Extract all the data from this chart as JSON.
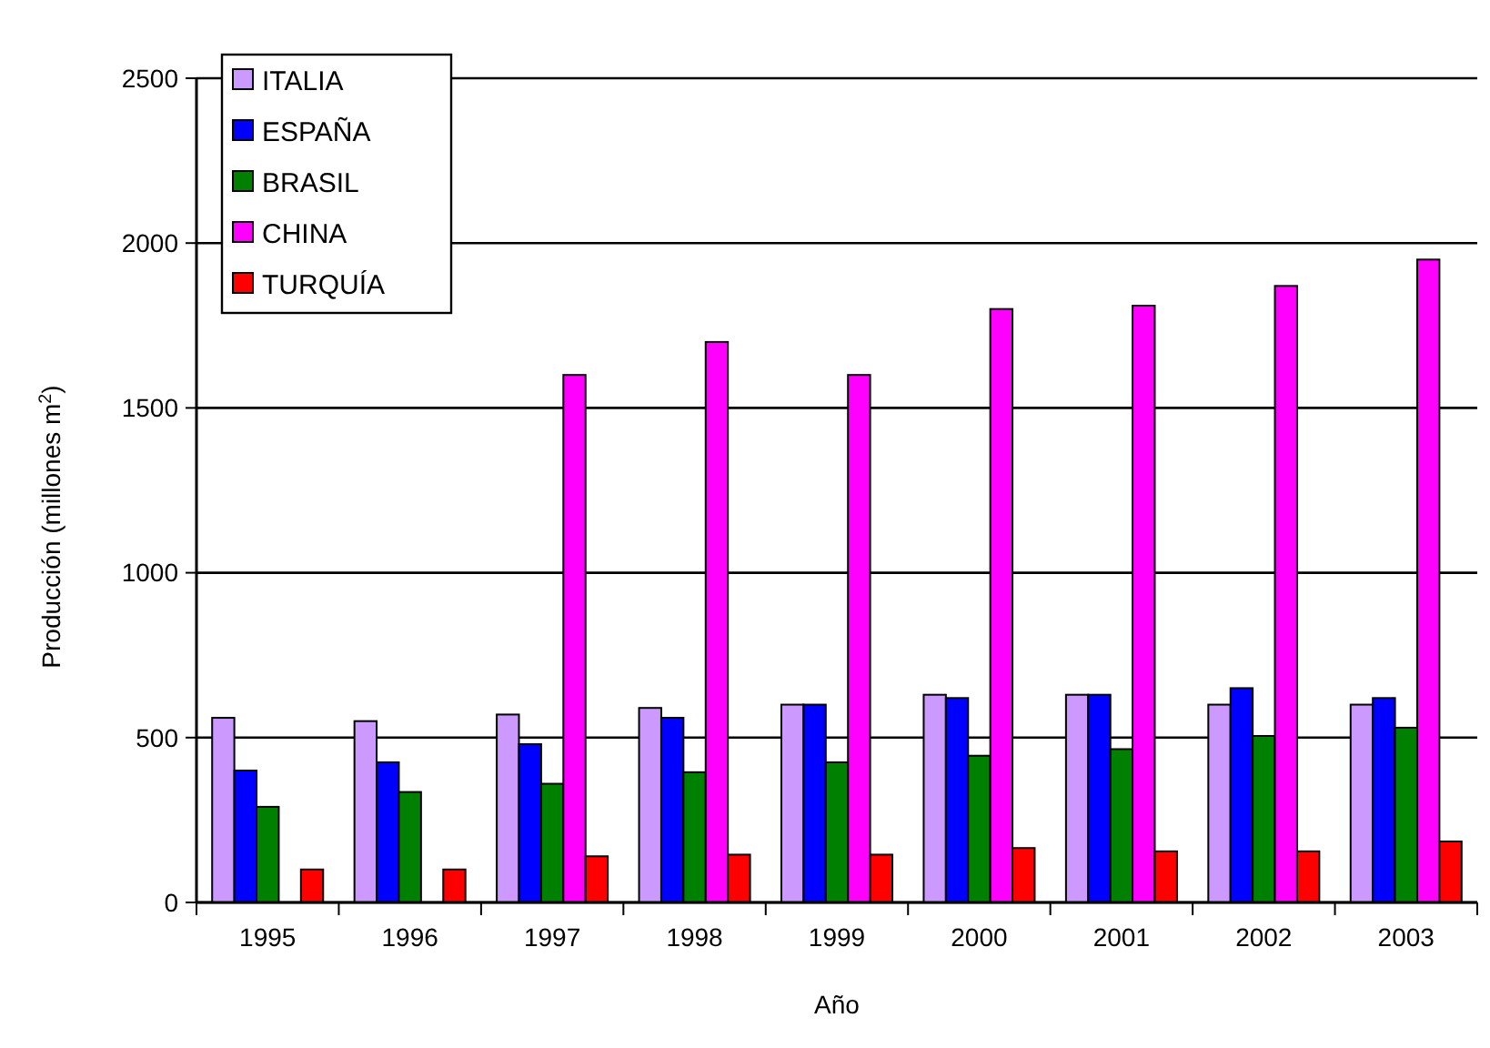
{
  "chart_data": {
    "type": "bar",
    "xlabel": "Año",
    "ylabel": "Producción (millones m$^{2}$)",
    "categories": [
      "1995",
      "1996",
      "1997",
      "1998",
      "1999",
      "2000",
      "2001",
      "2002",
      "2003"
    ],
    "series": [
      {
        "name": "ITALIA",
        "color": "#cc99ff",
        "values": [
          560,
          550,
          570,
          590,
          600,
          630,
          630,
          600,
          600
        ]
      },
      {
        "name": "ESPAÑA",
        "color": "#0000ff",
        "values": [
          400,
          425,
          480,
          560,
          600,
          620,
          630,
          650,
          620
        ]
      },
      {
        "name": "BRASIL",
        "color": "#008000",
        "values": [
          290,
          335,
          360,
          395,
          425,
          445,
          465,
          505,
          530
        ]
      },
      {
        "name": "CHINA",
        "color": "#ff00ff",
        "values": [
          null,
          null,
          1600,
          1700,
          1600,
          1800,
          1810,
          1870,
          1950
        ]
      },
      {
        "name": "TURQUÍA",
        "color": "#ff0000",
        "values": [
          100,
          100,
          140,
          145,
          145,
          165,
          155,
          155,
          185
        ]
      }
    ],
    "ylim": [
      0,
      2500
    ],
    "yticks": [
      0,
      500,
      1000,
      1500,
      2000,
      2500
    ],
    "grid": "y",
    "legend": "top left"
  }
}
